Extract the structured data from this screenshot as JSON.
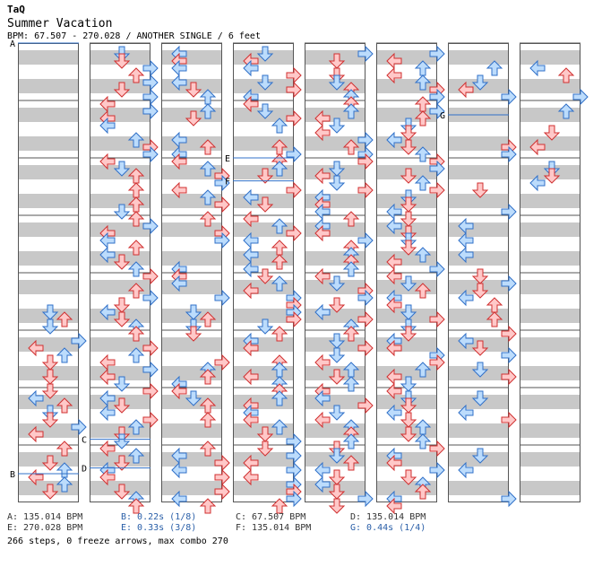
{
  "header": {
    "artist": "TaQ",
    "title": "Summer Vacation",
    "info": "BPM: 67.507 - 270.028 / ANOTHER SINGLE / 6 feet"
  },
  "colors": {
    "stripe": "#c8c8c8",
    "column_border": "#555555",
    "red_fill": "#ffc8c8",
    "red_stroke": "#d03030",
    "blue_fill": "#bcdcfc",
    "blue_stroke": "#3070c8",
    "marker_line": "#3070c8"
  },
  "chart": {
    "column_count": 8,
    "measures_per_column": 8,
    "markers": [
      {
        "label": "A",
        "column": 0,
        "measure_pos": 0.0
      },
      {
        "label": "B",
        "column": 0,
        "measure_pos": 7.5
      },
      {
        "label": "C",
        "column": 1,
        "measure_pos": 6.9
      },
      {
        "label": "D",
        "column": 1,
        "measure_pos": 7.4
      },
      {
        "label": "E",
        "column": 3,
        "measure_pos": 2.0
      },
      {
        "label": "F",
        "column": 3,
        "measure_pos": 2.4
      },
      {
        "label": "G",
        "column": 6,
        "measure_pos": 1.25
      }
    ]
  },
  "legend": [
    {
      "text": "A: 135.014 BPM",
      "style": "normal"
    },
    {
      "text": "B: 0.22s (1/8)",
      "style": "blue"
    },
    {
      "text": "C: 67.507 BPM",
      "style": "normal"
    },
    {
      "text": "D: 135.014 BPM",
      "style": "normal"
    },
    {
      "text": "E: 270.028 BPM",
      "style": "normal"
    },
    {
      "text": "E: 0.33s (3/8)",
      "style": "blue"
    },
    {
      "text": "F: 135.014 BPM",
      "style": "normal"
    },
    {
      "text": "G: 0.44s (1/4)",
      "style": "blue"
    }
  ],
  "summary": "266 steps, 0 freeze arrows, max combo 270"
}
